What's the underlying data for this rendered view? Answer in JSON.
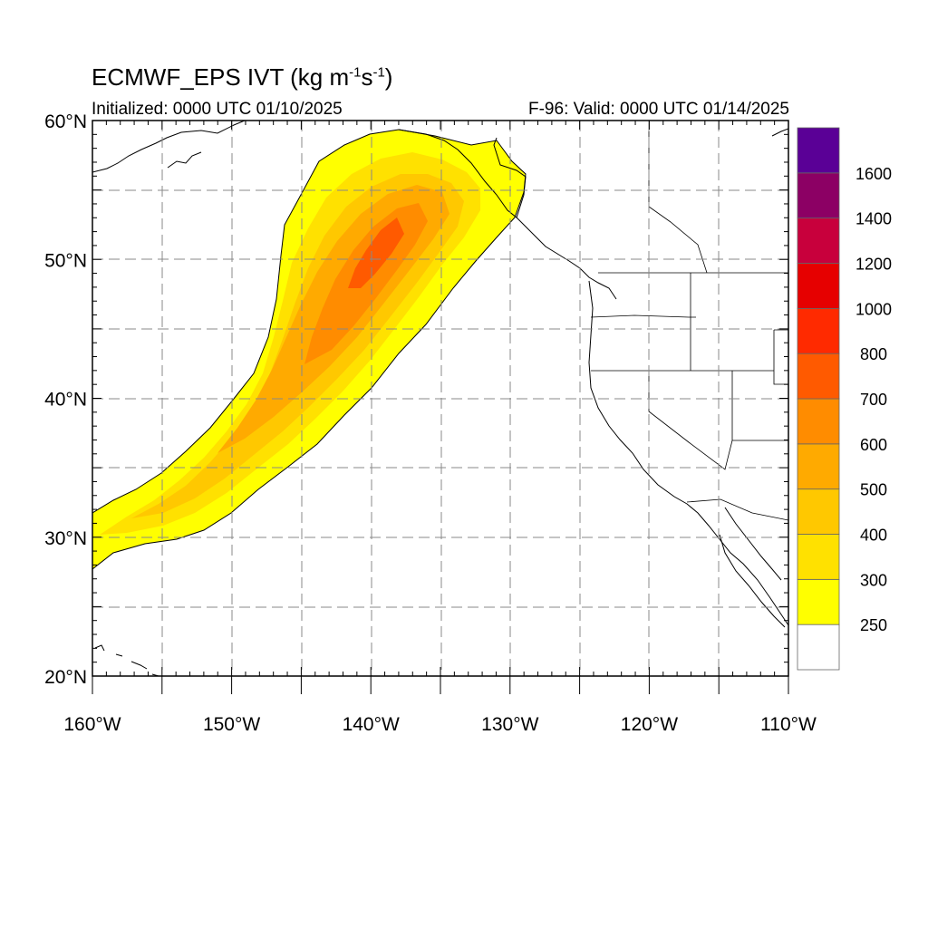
{
  "title": {
    "main": "ECMWF_EPS IVT (kg m",
    "sup1": "-1",
    "mid": "s",
    "sup2": "-1",
    "end": ")"
  },
  "initialized": "Initialized: 0000 UTC 01/10/2025",
  "valid": "F-96: Valid: 0000 UTC 01/14/2025",
  "map": {
    "lon_range": [
      -160,
      -110
    ],
    "lat_range": [
      20,
      60
    ],
    "grid": "dashed",
    "lon_labels": [
      "160°W",
      "150°W",
      "140°W",
      "130°W",
      "120°W",
      "110°W"
    ],
    "lat_labels": [
      "20°N",
      "30°N",
      "40°N",
      "50°N",
      "60°N"
    ],
    "lon_ticks": [
      -160,
      -150,
      -140,
      -130,
      -120,
      -110
    ],
    "lat_ticks": [
      20,
      30,
      40,
      50,
      60
    ]
  },
  "colorbar": {
    "levels": [
      "250",
      "300",
      "400",
      "500",
      "600",
      "700",
      "800",
      "1000",
      "1200",
      "1400",
      "1600"
    ],
    "colors": [
      "#ffffff",
      "#ffff00",
      "#ffe100",
      "#ffc800",
      "#ffaa00",
      "#ff8c00",
      "#ff5a00",
      "#ff2a00",
      "#e60000",
      "#c8003c",
      "#8c0064",
      "#5a0096"
    ]
  },
  "ivt_bands": [
    {
      "level": 250,
      "color": "#ffff00"
    },
    {
      "level": 300,
      "color": "#ffe100"
    },
    {
      "level": 400,
      "color": "#ffc800"
    },
    {
      "level": 500,
      "color": "#ffaa00"
    },
    {
      "level": 600,
      "color": "#ff8c00"
    },
    {
      "level": 700,
      "color": "#ff5a00"
    }
  ]
}
